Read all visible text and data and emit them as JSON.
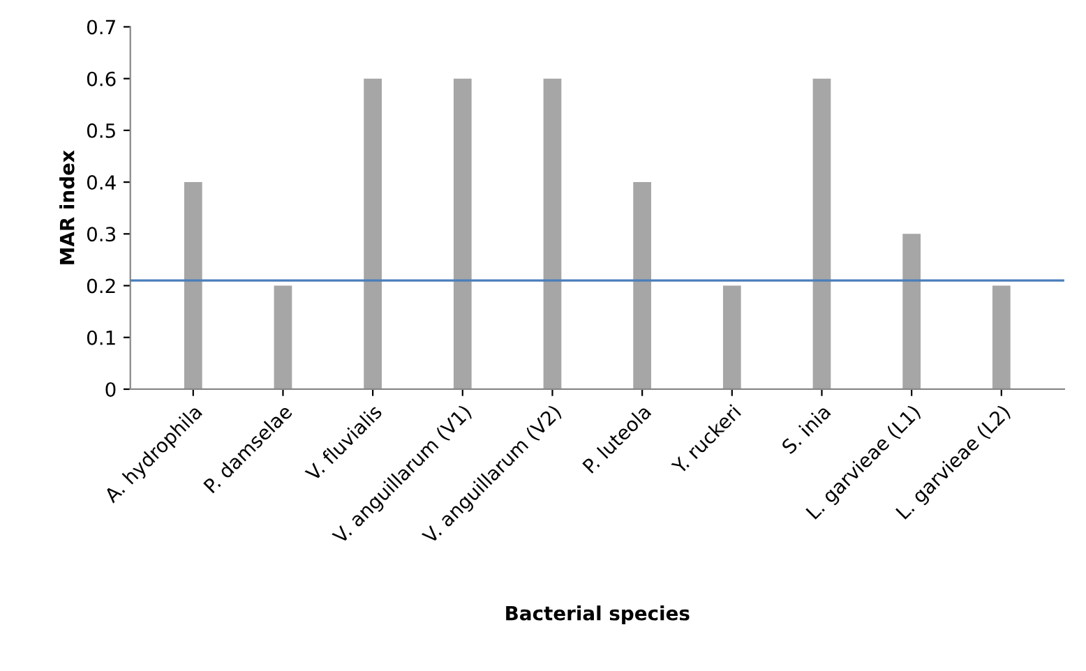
{
  "chart_data": {
    "type": "bar",
    "xlabel": "Bacterial species",
    "ylabel": "MAR index",
    "categories": [
      "A. hydrophila",
      "P. damselae",
      "V. fluvialis",
      "V. anguillarum (V1)",
      "V. anguillarum (V2)",
      "P. luteola",
      "Y. ruckeri",
      "S. inia",
      "L. garvieae (L1)",
      "L. garvieae (L2)"
    ],
    "values": [
      0.4,
      0.2,
      0.6,
      0.6,
      0.6,
      0.4,
      0.2,
      0.6,
      0.3,
      0.2
    ],
    "color": "#a6a6a6",
    "ylim": [
      0,
      0.7
    ],
    "yticks": [
      0,
      0.1,
      0.2,
      0.3,
      0.4,
      0.5,
      0.6,
      0.7
    ],
    "ref_lines": [
      {
        "axis": "y",
        "value": 0.21,
        "color": "#4a7ebb"
      }
    ],
    "grid": false,
    "legend": false
  }
}
